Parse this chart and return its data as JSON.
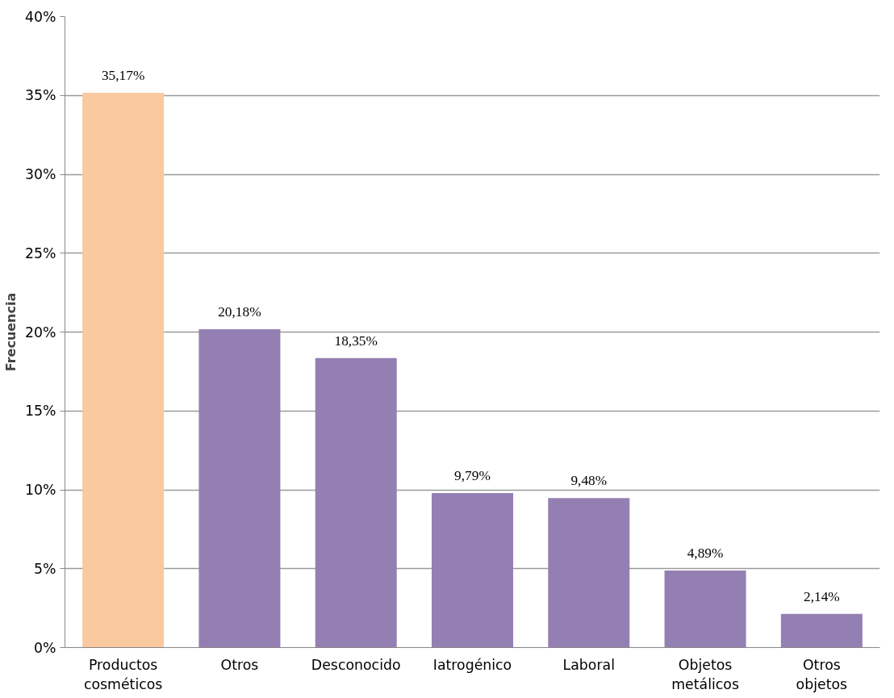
{
  "chart_data": {
    "type": "bar",
    "ylabel": "Frecuencia",
    "categories": [
      "Productos\ncosméticos",
      "Otros",
      "Desconocido",
      "Iatrogénico",
      "Laboral",
      "Objetos\nmetálicos",
      "Otros\nobjetos"
    ],
    "values": [
      35.17,
      20.18,
      18.35,
      9.79,
      9.48,
      4.89,
      2.14
    ],
    "colors": [
      "#fac9a0",
      "#947fb3",
      "#947fb3",
      "#947fb3",
      "#947fb3",
      "#947fb3",
      "#947fb3"
    ],
    "value_labels": [
      "35,17%",
      "20,18%",
      "18,35%",
      "9,79%",
      "9,48%",
      "4,89%",
      "2,14%"
    ],
    "ylim": [
      0,
      40
    ],
    "yticks": [
      {
        "value": 0,
        "label": "0%"
      },
      {
        "value": 5,
        "label": "5%"
      },
      {
        "value": 10,
        "label": "10%"
      },
      {
        "value": 15,
        "label": "15%"
      },
      {
        "value": 20,
        "label": "20%"
      },
      {
        "value": 25,
        "label": "25%"
      },
      {
        "value": 30,
        "label": "30%"
      },
      {
        "value": 35,
        "label": "35%"
      },
      {
        "value": 40,
        "label": "40%"
      }
    ],
    "grid": "y"
  }
}
